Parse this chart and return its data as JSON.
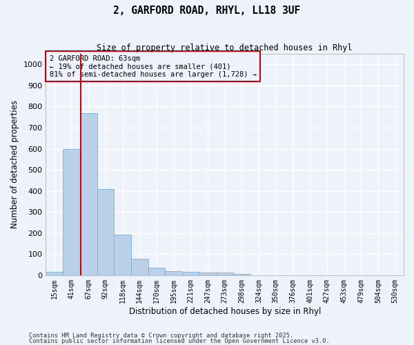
{
  "title_line1": "2, GARFORD ROAD, RHYL, LL18 3UF",
  "title_line2": "Size of property relative to detached houses in Rhyl",
  "xlabel": "Distribution of detached houses by size in Rhyl",
  "ylabel": "Number of detached properties",
  "categories": [
    "15sqm",
    "41sqm",
    "67sqm",
    "92sqm",
    "118sqm",
    "144sqm",
    "170sqm",
    "195sqm",
    "221sqm",
    "247sqm",
    "273sqm",
    "298sqm",
    "324sqm",
    "350sqm",
    "376sqm",
    "401sqm",
    "427sqm",
    "453sqm",
    "479sqm",
    "504sqm",
    "530sqm"
  ],
  "values": [
    15,
    600,
    770,
    410,
    193,
    77,
    37,
    18,
    17,
    11,
    13,
    6,
    0,
    0,
    0,
    0,
    0,
    0,
    0,
    0,
    0
  ],
  "bar_color": "#bad0e8",
  "bar_edge_color": "#7aafd4",
  "vline_x": 1.54,
  "vline_color": "#cc0000",
  "ylim": [
    0,
    1050
  ],
  "yticks": [
    0,
    100,
    200,
    300,
    400,
    500,
    600,
    700,
    800,
    900,
    1000
  ],
  "annotation_text": "2 GARFORD ROAD: 63sqm\n← 19% of detached houses are smaller (401)\n81% of semi-detached houses are larger (1,728) →",
  "footnote1": "Contains HM Land Registry data © Crown copyright and database right 2025.",
  "footnote2": "Contains public sector information licensed under the Open Government Licence v3.0.",
  "background_color": "#eef2fb",
  "grid_color": "#ffffff"
}
